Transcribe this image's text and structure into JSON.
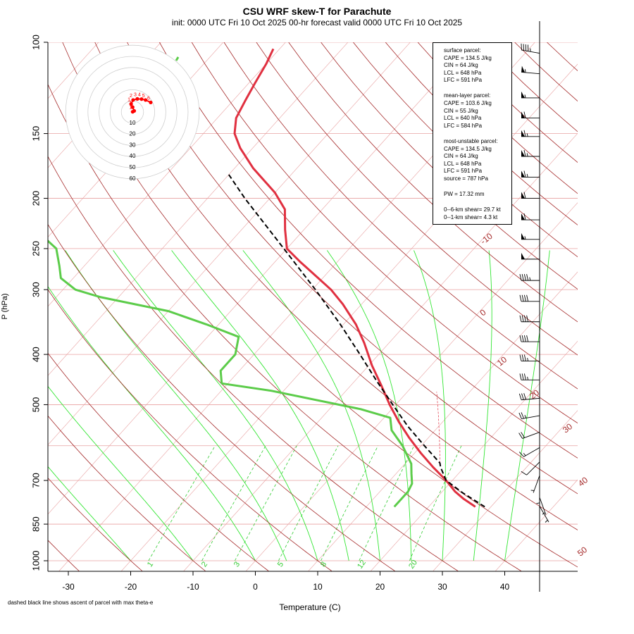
{
  "title": "CSU WRF skew-T for Parachute",
  "subtitle": "init: 0000 UTC Fri 10 Oct 2025    00-hr forecast valid 0000 UTC Fri 10 Oct 2025",
  "footnote": "dashed black line shows ascent of parcel with max theta-e",
  "stats": [
    "surface parcel:",
    "CAPE = 134.5 J/kg",
    "CIN = 64 J/kg",
    "LCL = 648 hPa",
    "LFC = 591 hPa",
    "",
    "mean-layer parcel:",
    "CAPE = 103.6 J/kg",
    "CIN = 55 J/kg",
    "LCL = 640 hPa",
    "LFC = 584 hPa",
    "",
    "most-unstable parcel:",
    "CAPE = 134.5 J/kg",
    "CIN = 64 J/kg",
    "LCL = 648 hPa",
    "LFC = 591 hPa",
    "source = 787 hPa",
    "",
    "PW =  17.32 mm",
    "",
    "0--6-km shear= 29.7 kt",
    "0--1-km shear= 4.3 kt"
  ],
  "colors": {
    "temperature": "#e03040",
    "dewpoint": "#5ccc4a",
    "parcel": "#000000",
    "isotherm_isobar": "#e8a0a0",
    "dry_adiabat": "#a52a2a",
    "moist_adiabat": "#33e633",
    "mixing_ratio": "#33cc33",
    "hodograph": "#ff0000",
    "hodo_ring": "#cfcfcf",
    "axis": "#000000"
  },
  "chart_data": {
    "type": "skew-t",
    "title": "CSU WRF skew-T for Parachute",
    "xlabel": "Temperature (C)",
    "ylabel": "P (hPa)",
    "xlim": [
      -33,
      45
    ],
    "ylim": [
      1000,
      100
    ],
    "x_ticks": [
      "-30",
      "-20",
      "-10",
      "0",
      "10",
      "20",
      "30",
      "40"
    ],
    "pressure_ticks": [
      {
        "p": 100,
        "label": "100"
      },
      {
        "p": 150,
        "label": "150"
      },
      {
        "p": 200,
        "label": "200"
      },
      {
        "p": 250,
        "label": "250"
      },
      {
        "p": 300,
        "label": "300"
      },
      {
        "p": 400,
        "label": "400"
      },
      {
        "p": 500,
        "label": "500"
      },
      {
        "p": 700,
        "label": "700"
      },
      {
        "p": 850,
        "label": "850"
      },
      {
        "p": 1000,
        "label": "1000"
      }
    ],
    "isobars": [
      100,
      150,
      200,
      250,
      300,
      400,
      500,
      600,
      700,
      850,
      1000
    ],
    "isotherms": [
      -110,
      -100,
      -90,
      -80,
      -70,
      -60,
      -50,
      -40,
      -30,
      -20,
      -10,
      0,
      10,
      20,
      30,
      40
    ],
    "dry_adiabat_labels": [
      "-10",
      "0",
      "10",
      "20",
      "30",
      "40",
      "50"
    ],
    "mixing_ratio_labels": [
      "1",
      "2",
      "3",
      "5",
      "8",
      "12",
      "20"
    ],
    "temperature": [
      {
        "p": 787,
        "t": 27.5
      },
      {
        "p": 760,
        "t": 24.5
      },
      {
        "p": 735,
        "t": 22
      },
      {
        "p": 700,
        "t": 19
      },
      {
        "p": 660,
        "t": 15
      },
      {
        "p": 620,
        "t": 11
      },
      {
        "p": 580,
        "t": 7
      },
      {
        "p": 540,
        "t": 3
      },
      {
        "p": 500,
        "t": -1
      },
      {
        "p": 460,
        "t": -5
      },
      {
        "p": 420,
        "t": -9.5
      },
      {
        "p": 380,
        "t": -14
      },
      {
        "p": 350,
        "t": -18
      },
      {
        "p": 320,
        "t": -23
      },
      {
        "p": 300,
        "t": -27
      },
      {
        "p": 280,
        "t": -32
      },
      {
        "p": 265,
        "t": -36
      },
      {
        "p": 250,
        "t": -40
      },
      {
        "p": 230,
        "t": -43
      },
      {
        "p": 210,
        "t": -46
      },
      {
        "p": 195,
        "t": -50
      },
      {
        "p": 175,
        "t": -57
      },
      {
        "p": 160,
        "t": -62
      },
      {
        "p": 150,
        "t": -65
      },
      {
        "p": 140,
        "t": -67
      },
      {
        "p": 130,
        "t": -68
      },
      {
        "p": 120,
        "t": -69
      },
      {
        "p": 110,
        "t": -70
      },
      {
        "p": 103,
        "t": -71
      }
    ],
    "dewpoint": [
      {
        "p": 787,
        "t": 14.5
      },
      {
        "p": 760,
        "t": 14.5
      },
      {
        "p": 735,
        "t": 14.5
      },
      {
        "p": 710,
        "t": 14
      },
      {
        "p": 680,
        "t": 12.5
      },
      {
        "p": 650,
        "t": 11
      },
      {
        "p": 600,
        "t": 7
      },
      {
        "p": 560,
        "t": 3
      },
      {
        "p": 530,
        "t": 1
      },
      {
        "p": 510,
        "t": -5
      },
      {
        "p": 470,
        "t": -22
      },
      {
        "p": 455,
        "t": -31
      },
      {
        "p": 430,
        "t": -33
      },
      {
        "p": 400,
        "t": -33
      },
      {
        "p": 370,
        "t": -35
      },
      {
        "p": 350,
        "t": -42
      },
      {
        "p": 330,
        "t": -50
      },
      {
        "p": 310,
        "t": -63
      },
      {
        "p": 300,
        "t": -68
      },
      {
        "p": 285,
        "t": -72
      },
      {
        "p": 270,
        "t": -74
      },
      {
        "p": 250,
        "t": -77
      },
      {
        "p": 230,
        "t": -83
      },
      {
        "p": 210,
        "t": -90
      },
      {
        "p": 195,
        "t": -96
      },
      {
        "p": 180,
        "t": -98
      }
    ],
    "parcel": [
      {
        "p": 787,
        "t": 29
      },
      {
        "p": 740,
        "t": 23.5
      },
      {
        "p": 700,
        "t": 19
      },
      {
        "p": 660,
        "t": 16.2
      },
      {
        "p": 648,
        "t": 15.5
      },
      {
        "p": 600,
        "t": 10.5
      },
      {
        "p": 550,
        "t": 5
      },
      {
        "p": 500,
        "t": -0.5
      },
      {
        "p": 450,
        "t": -6.5
      },
      {
        "p": 400,
        "t": -13
      },
      {
        "p": 350,
        "t": -20.5
      },
      {
        "p": 300,
        "t": -29.5
      },
      {
        "p": 250,
        "t": -40.5
      },
      {
        "p": 200,
        "t": -54
      },
      {
        "p": 180,
        "t": -60
      }
    ],
    "hodograph": {
      "ring_labels": [
        "10",
        "20",
        "30",
        "40",
        "50",
        "60"
      ],
      "points": [
        {
          "label": "1",
          "u": 0.2,
          "v": 0.2
        },
        {
          "label": "1",
          "u": 1.6,
          "v": 1.0
        },
        {
          "label": "1",
          "u": 0.2,
          "v": 4.4
        },
        {
          "label": "1",
          "u": -1.2,
          "v": 7.2
        },
        {
          "label": "2",
          "u": 0.6,
          "v": 10.8
        },
        {
          "label": "3",
          "u": 4.4,
          "v": 11.8
        },
        {
          "label": "4",
          "u": 8.2,
          "v": 11.6
        },
        {
          "label": "5",
          "u": 11.8,
          "v": 10.8
        },
        {
          "label": "6",
          "u": 16.4,
          "v": 8.6
        }
      ]
    },
    "wind_barbs": [
      {
        "p": 105,
        "dir": 280,
        "kt": 45
      },
      {
        "p": 115,
        "dir": 275,
        "kt": 55
      },
      {
        "p": 128,
        "dir": 270,
        "kt": 55
      },
      {
        "p": 140,
        "dir": 270,
        "kt": 60
      },
      {
        "p": 152,
        "dir": 270,
        "kt": 65
      },
      {
        "p": 166,
        "dir": 270,
        "kt": 65
      },
      {
        "p": 182,
        "dir": 270,
        "kt": 65
      },
      {
        "p": 200,
        "dir": 270,
        "kt": 60
      },
      {
        "p": 220,
        "dir": 270,
        "kt": 60
      },
      {
        "p": 240,
        "dir": 270,
        "kt": 55
      },
      {
        "p": 262,
        "dir": 270,
        "kt": 50
      },
      {
        "p": 288,
        "dir": 270,
        "kt": 45
      },
      {
        "p": 316,
        "dir": 270,
        "kt": 40
      },
      {
        "p": 346,
        "dir": 270,
        "kt": 40
      },
      {
        "p": 378,
        "dir": 270,
        "kt": 40
      },
      {
        "p": 412,
        "dir": 270,
        "kt": 35
      },
      {
        "p": 448,
        "dir": 270,
        "kt": 35
      },
      {
        "p": 486,
        "dir": 265,
        "kt": 30
      },
      {
        "p": 525,
        "dir": 260,
        "kt": 25
      },
      {
        "p": 565,
        "dir": 250,
        "kt": 20
      },
      {
        "p": 605,
        "dir": 240,
        "kt": 15
      },
      {
        "p": 645,
        "dir": 225,
        "kt": 10
      },
      {
        "p": 685,
        "dir": 200,
        "kt": 5
      },
      {
        "p": 720,
        "dir": 180,
        "kt": 5
      },
      {
        "p": 755,
        "dir": 160,
        "kt": 5
      },
      {
        "p": 785,
        "dir": 150,
        "kt": 5
      }
    ]
  }
}
